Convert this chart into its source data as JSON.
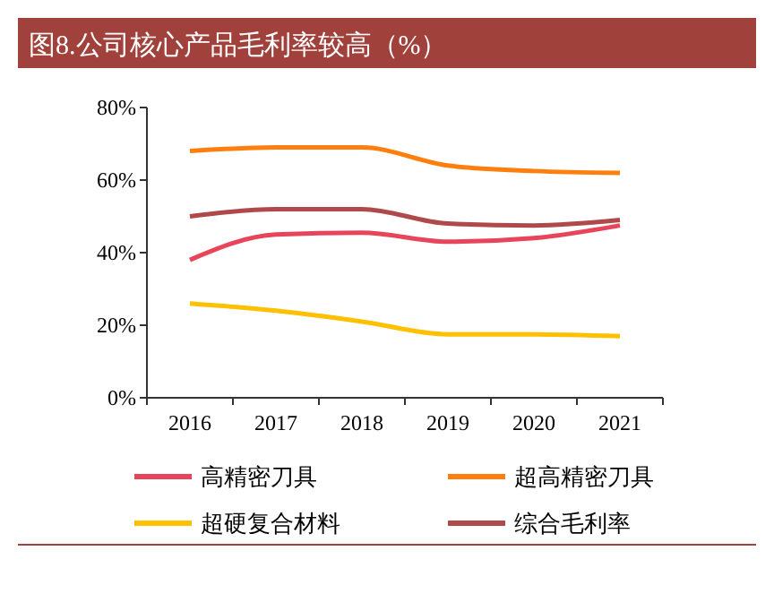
{
  "chart_data": {
    "type": "line",
    "title": "图8.公司核心产品毛利率较高（%）",
    "categories": [
      "2016",
      "2017",
      "2018",
      "2019",
      "2020",
      "2021"
    ],
    "series": [
      {
        "name": "高精密刀具",
        "color": "#e8445a",
        "values": [
          38,
          45,
          45.5,
          43,
          44,
          47.5
        ]
      },
      {
        "name": "超高精密刀具",
        "color": "#ff7f0e",
        "values": [
          68,
          69,
          69,
          64,
          62.5,
          62
        ]
      },
      {
        "name": "超硬复合材料",
        "color": "#ffc000",
        "values": [
          26,
          24,
          21,
          17.5,
          17.5,
          17
        ]
      },
      {
        "name": "综合毛利率",
        "color": "#b04a4a",
        "values": [
          50,
          52,
          52,
          48,
          47.5,
          49
        ]
      }
    ],
    "ylim": [
      0,
      80
    ],
    "yticks": [
      {
        "value": 0,
        "label": "0%"
      },
      {
        "value": 20,
        "label": "20%"
      },
      {
        "value": 40,
        "label": "40%"
      },
      {
        "value": 60,
        "label": "60%"
      },
      {
        "value": 80,
        "label": "80%"
      }
    ],
    "legend": "bottom",
    "grid": false,
    "line_style": "solid",
    "marker": "none"
  }
}
